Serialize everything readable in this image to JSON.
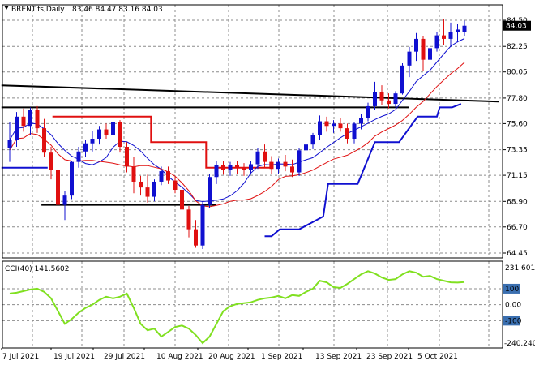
{
  "header": {
    "symbol": "BRENT.fs,Daily",
    "ohlc": "83.46 84.47 83.16 84.03"
  },
  "indicator": {
    "label": "CCI(40) 141.5602"
  },
  "colors": {
    "bull": "#1010d0",
    "bear": "#e01010",
    "grid": "#8c8c8c",
    "axis": "#000000",
    "red_line": "#e01010",
    "blue_line": "#1010d0",
    "black_line": "#000000",
    "cci": "#80e020"
  },
  "chart_data": [
    {
      "type": "candlestick",
      "title": "BRENT.fs,Daily",
      "x_labels": [
        "7 Jul 2021",
        "19 Jul 2021",
        "29 Jul 2021",
        "10 Aug 2021",
        "20 Aug 2021",
        "1 Sep 2021",
        "13 Sep 2021",
        "23 Sep 2021",
        "5 Oct 2021"
      ],
      "ylim": [
        64.45,
        84.85
      ],
      "y_ticks": [
        "84.50",
        "82.25",
        "80.05",
        "77.80",
        "75.60",
        "73.35",
        "71.15",
        "68.90",
        "66.70",
        "64.45"
      ],
      "last_price": "84.03",
      "candles": [
        [
          73.5,
          75.7,
          72.3,
          74.2
        ],
        [
          74.2,
          76.6,
          73.6,
          76.2
        ],
        [
          76.2,
          76.9,
          74.9,
          75.4
        ],
        [
          75.4,
          77.0,
          74.6,
          76.8
        ],
        [
          76.8,
          77.1,
          74.8,
          75.2
        ],
        [
          75.2,
          76.0,
          72.7,
          73.1
        ],
        [
          73.1,
          73.6,
          70.8,
          71.6
        ],
        [
          71.6,
          72.0,
          67.6,
          68.6
        ],
        [
          68.6,
          69.8,
          67.3,
          69.4
        ],
        [
          69.4,
          72.4,
          69.1,
          72.3
        ],
        [
          72.3,
          73.6,
          71.8,
          73.2
        ],
        [
          73.2,
          74.2,
          72.7,
          73.9
        ],
        [
          73.9,
          75.0,
          73.2,
          74.3
        ],
        [
          74.3,
          75.4,
          73.8,
          75.1
        ],
        [
          75.1,
          75.6,
          74.3,
          74.6
        ],
        [
          74.6,
          76.0,
          74.1,
          75.7
        ],
        [
          75.7,
          75.9,
          73.1,
          73.6
        ],
        [
          73.6,
          74.0,
          71.4,
          71.9
        ],
        [
          71.9,
          72.7,
          69.6,
          70.6
        ],
        [
          70.6,
          71.1,
          69.4,
          70.1
        ],
        [
          70.1,
          71.2,
          68.8,
          69.3
        ],
        [
          69.3,
          70.8,
          68.9,
          70.6
        ],
        [
          70.6,
          71.9,
          70.3,
          71.5
        ],
        [
          71.5,
          71.9,
          70.4,
          70.7
        ],
        [
          70.7,
          71.0,
          69.6,
          69.9
        ],
        [
          69.9,
          70.3,
          67.8,
          68.2
        ],
        [
          68.2,
          68.5,
          65.8,
          66.5
        ],
        [
          66.5,
          67.3,
          64.9,
          65.1
        ],
        [
          65.1,
          68.9,
          64.8,
          68.6
        ],
        [
          68.6,
          71.3,
          68.3,
          71.0
        ],
        [
          71.0,
          72.4,
          70.4,
          72.0
        ],
        [
          72.0,
          72.4,
          71.2,
          71.6
        ],
        [
          71.6,
          72.3,
          71.1,
          72.0
        ],
        [
          72.0,
          72.4,
          71.3,
          71.8
        ],
        [
          71.8,
          72.2,
          71.1,
          71.6
        ],
        [
          71.6,
          72.4,
          71.2,
          72.1
        ],
        [
          72.1,
          73.5,
          71.7,
          73.2
        ],
        [
          73.2,
          73.8,
          71.8,
          72.3
        ],
        [
          72.3,
          72.8,
          71.3,
          71.7
        ],
        [
          71.7,
          72.6,
          71.3,
          72.3
        ],
        [
          72.3,
          72.9,
          71.5,
          71.9
        ],
        [
          71.9,
          72.5,
          71.0,
          71.4
        ],
        [
          71.4,
          73.5,
          71.1,
          73.3
        ],
        [
          73.3,
          74.0,
          72.9,
          73.8
        ],
        [
          73.8,
          74.8,
          73.4,
          74.6
        ],
        [
          74.6,
          76.3,
          74.2,
          75.8
        ],
        [
          75.8,
          76.2,
          74.9,
          75.4
        ],
        [
          75.4,
          75.9,
          74.8,
          75.6
        ],
        [
          75.6,
          76.1,
          74.9,
          75.2
        ],
        [
          75.2,
          75.6,
          73.9,
          74.3
        ],
        [
          74.3,
          75.7,
          73.9,
          75.6
        ],
        [
          75.6,
          76.4,
          75.1,
          76.1
        ],
        [
          76.1,
          77.4,
          75.8,
          77.1
        ],
        [
          77.1,
          79.2,
          76.8,
          78.3
        ],
        [
          78.3,
          78.9,
          77.2,
          77.6
        ],
        [
          77.6,
          78.2,
          76.9,
          77.3
        ],
        [
          77.3,
          78.4,
          77.0,
          78.2
        ],
        [
          78.2,
          80.8,
          78.1,
          80.6
        ],
        [
          80.6,
          82.2,
          79.6,
          81.8
        ],
        [
          81.8,
          83.4,
          81.0,
          82.9
        ],
        [
          82.9,
          83.1,
          80.1,
          81.1
        ],
        [
          81.1,
          82.6,
          80.8,
          82.1
        ],
        [
          82.1,
          83.5,
          81.8,
          83.2
        ],
        [
          83.2,
          84.6,
          82.4,
          82.9
        ],
        [
          82.9,
          84.3,
          82.2,
          83.5
        ],
        [
          83.5,
          84.2,
          82.6,
          83.7
        ],
        [
          83.46,
          84.47,
          83.16,
          84.03
        ]
      ]
    },
    {
      "type": "line",
      "title": "CCI(40) 141.5602",
      "ylim": [
        -240.24,
        231.601
      ],
      "y_ticks": [
        "231.601",
        "100",
        "0.00",
        "-100",
        "-240.240"
      ],
      "values": [
        70,
        75,
        85,
        95,
        100,
        80,
        40,
        -40,
        -120,
        -90,
        -50,
        -20,
        0,
        30,
        50,
        40,
        50,
        70,
        -20,
        -120,
        -160,
        -150,
        -200,
        -170,
        -140,
        -130,
        -150,
        -190,
        -240,
        -200,
        -120,
        -40,
        -10,
        5,
        10,
        15,
        30,
        40,
        45,
        55,
        40,
        60,
        55,
        80,
        100,
        150,
        140,
        110,
        105,
        130,
        160,
        190,
        210,
        195,
        170,
        155,
        160,
        190,
        210,
        200,
        175,
        180,
        160,
        150,
        140,
        138,
        141.56
      ]
    }
  ]
}
